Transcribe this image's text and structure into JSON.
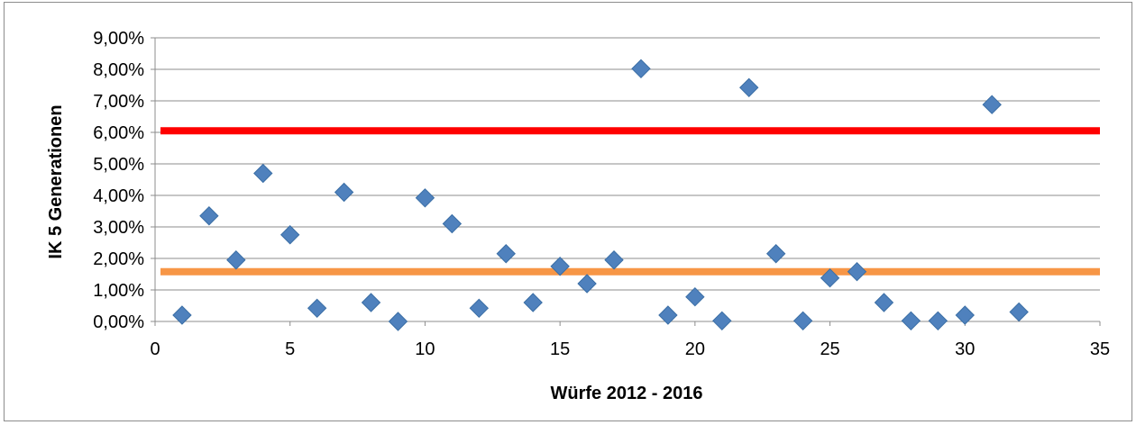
{
  "chart_data": {
    "type": "scatter",
    "xlabel": "Würfe 2012 - 2016",
    "ylabel": "IK 5 Generationen",
    "xlim": [
      0,
      35
    ],
    "ylim": [
      0,
      9
    ],
    "x_ticks": [
      0,
      5,
      10,
      15,
      20,
      25,
      30,
      35
    ],
    "x_tick_labels": [
      "0",
      "5",
      "10",
      "15",
      "20",
      "25",
      "30",
      "35"
    ],
    "y_ticks": [
      0,
      1,
      2,
      3,
      4,
      5,
      6,
      7,
      8,
      9
    ],
    "y_tick_labels": [
      "0,00%",
      "1,00%",
      "2,00%",
      "3,00%",
      "4,00%",
      "5,00%",
      "6,00%",
      "7,00%",
      "8,00%",
      "9,00%"
    ],
    "grid": "horizontal",
    "series": [
      {
        "marker": "diamond",
        "color": "#4F81BD",
        "x": [
          1,
          2,
          3,
          4,
          5,
          6,
          7,
          8,
          9,
          10,
          11,
          12,
          13,
          14,
          15,
          16,
          17,
          18,
          19,
          20,
          21,
          22,
          23,
          24,
          25,
          26,
          27,
          28,
          29,
          30,
          31,
          32
        ],
        "y": [
          0.2,
          3.35,
          1.95,
          4.7,
          2.75,
          0.42,
          4.1,
          0.6,
          0.0,
          3.92,
          3.1,
          0.42,
          2.15,
          0.6,
          1.75,
          1.2,
          1.95,
          8.02,
          0.2,
          0.78,
          0.02,
          7.42,
          2.15,
          0.02,
          1.38,
          1.58,
          0.6,
          0.02,
          0.02,
          0.2,
          6.88,
          0.3
        ]
      }
    ],
    "reference_lines": [
      {
        "y": 6.05,
        "x_range": [
          0.2,
          35
        ],
        "color": "#FF0000"
      },
      {
        "y": 1.58,
        "x_range": [
          0.2,
          35
        ],
        "color": "#F79646"
      }
    ]
  }
}
